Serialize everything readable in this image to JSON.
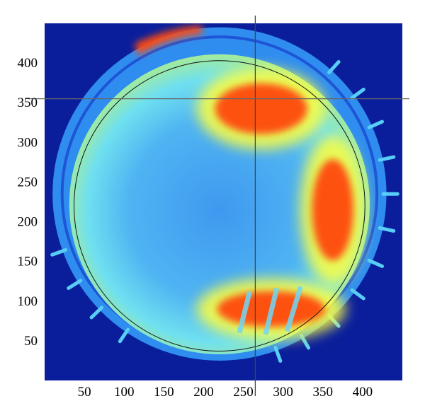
{
  "chart_data": {
    "type": "heatmap",
    "title": "",
    "xlabel": "",
    "ylabel": "",
    "xlim": [
      0,
      450
    ],
    "ylim": [
      0,
      450
    ],
    "x_ticks": [
      50,
      100,
      150,
      200,
      250,
      300,
      350,
      400
    ],
    "y_ticks": [
      50,
      100,
      150,
      200,
      250,
      300,
      350,
      400
    ],
    "colormap": "jet",
    "colors": {
      "background": "#0a1e9c",
      "low": "#2f8df0",
      "mid": "#58cdf5",
      "high": "#ffff3c",
      "peak": "#ff4a10"
    },
    "crosshair": {
      "x": 265,
      "y": 355
    },
    "reference_circle": {
      "center": [
        220,
        220
      ],
      "radius": 183
    },
    "outer_ring": {
      "center": [
        220,
        235
      ],
      "radius": 210
    },
    "hot_regions": [
      {
        "label": "upper arc",
        "x_range": [
          200,
          345
        ],
        "y_range": [
          300,
          385
        ]
      },
      {
        "label": "lower arc",
        "x_range": [
          200,
          370
        ],
        "y_range": [
          60,
          120
        ]
      },
      {
        "label": "right side",
        "x_range": [
          330,
          395
        ],
        "y_range": [
          130,
          300
        ]
      }
    ]
  }
}
